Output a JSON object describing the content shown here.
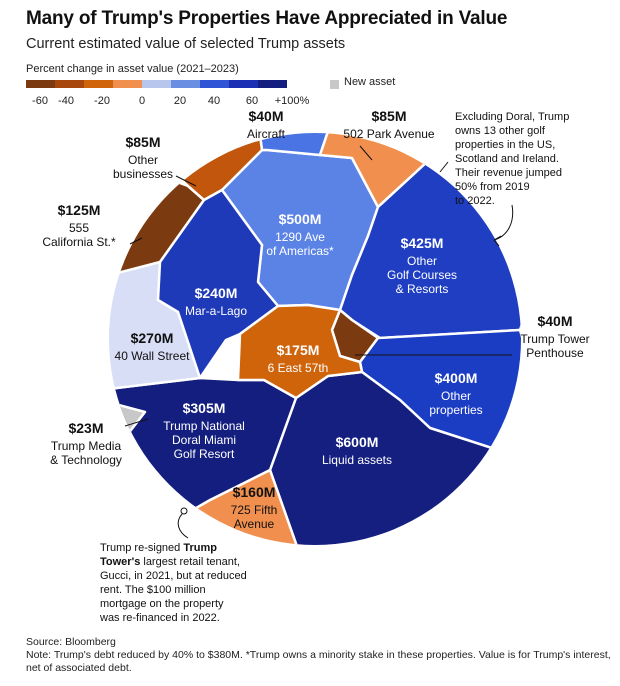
{
  "title": "Many of Trump's Properties Have Appreciated in Value",
  "subtitle": "Current estimated value of selected Trump assets",
  "legend": {
    "title": "Percent change in asset value (2021–2023)",
    "colors": [
      "#7b3a10",
      "#a8470d",
      "#d0640b",
      "#f1904e",
      "#b8c6ee",
      "#6a8fe2",
      "#2f54d6",
      "#1b2fb4",
      "#131e7e"
    ],
    "ticks": [
      "-60",
      "-40",
      "-20",
      "0",
      "20",
      "40",
      "60",
      "+100%"
    ],
    "new_asset_label": "New asset",
    "new_asset_color": "#c8c8c8"
  },
  "chart_data": {
    "type": "voronoi-treemap",
    "unit": "USD",
    "assets": [
      {
        "value": "$500M",
        "name": "1290 Ave of Americas*",
        "color": "#5b83e6"
      },
      {
        "value": "$40M",
        "name": "Aircraft",
        "color": "#4a74e4"
      },
      {
        "value": "$85M",
        "name": "502 Park Avenue",
        "color": "#f1904e"
      },
      {
        "value": "$425M",
        "name": "Other Golf Courses & Resorts",
        "color": "#1f3ec2"
      },
      {
        "value": "$40M",
        "name": "Trump Tower Penthouse",
        "color": "#7b3a10"
      },
      {
        "value": "$400M",
        "name": "Other properties",
        "color": "#1b3dc4"
      },
      {
        "value": "$600M",
        "name": "Liquid assets",
        "color": "#141f80"
      },
      {
        "value": "$160M",
        "name": "725 Fifth Avenue",
        "color": "#f1904e"
      },
      {
        "value": "$305M",
        "name": "Trump National Doral Miami Golf Resort",
        "color": "#131e7e"
      },
      {
        "value": "$23M",
        "name": "Trump Media & Technology",
        "color": "#c8c8c8"
      },
      {
        "value": "$270M",
        "name": "40 Wall Street",
        "color": "#d7def5"
      },
      {
        "value": "$125M",
        "name": "555 California St.*",
        "color": "#7b3a10"
      },
      {
        "value": "$85M",
        "name": "Other businesses",
        "color": "#c2560c"
      },
      {
        "value": "$240M",
        "name": "Mar-a-Lago",
        "color": "#1e3ab8"
      },
      {
        "value": "$175M",
        "name": "6 East 57th",
        "color": "#d0640b"
      }
    ]
  },
  "labels": {
    "ave": {
      "value": "$500M",
      "l1": "1290 Ave",
      "l2": "of Americas*"
    },
    "aircraft": {
      "value": "$40M",
      "l1": "Aircraft"
    },
    "park": {
      "value": "$85M",
      "l1": "502 Park Avenue"
    },
    "golf": {
      "value": "$425M",
      "l1": "Other",
      "l2": "Golf Courses",
      "l3": "& Resorts"
    },
    "penthouse": {
      "value": "$40M",
      "l1": "Trump Tower",
      "l2": "Penthouse"
    },
    "otherprop": {
      "value": "$400M",
      "l1": "Other",
      "l2": "properties"
    },
    "liquid": {
      "value": "$600M",
      "l1": "Liquid assets"
    },
    "fifth": {
      "value": "$160M",
      "l1": "725 Fifth",
      "l2": "Avenue"
    },
    "doral": {
      "value": "$305M",
      "l1": "Trump National",
      "l2": "Doral Miami",
      "l3": "Golf Resort"
    },
    "media": {
      "value": "$23M",
      "l1": "Trump Media",
      "l2": "& Technology"
    },
    "wall": {
      "value": "$270M",
      "l1": "40 Wall Street"
    },
    "california": {
      "value": "$125M",
      "l1": "555",
      "l2": "California St.*"
    },
    "otherbiz": {
      "value": "$85M",
      "l1": "Other",
      "l2": "businesses"
    },
    "mar": {
      "value": "$240M",
      "l1": "Mar-a-Lago"
    },
    "east": {
      "value": "$175M",
      "l1": "6 East 57th"
    }
  },
  "annotations": {
    "golf_note": [
      "Excluding Doral, Trump",
      "owns 13 other golf",
      "properties in the US,",
      "Scotland and Ireland.",
      "Their revenue jumped",
      "50% from 2019",
      "to 2022."
    ],
    "tower_note": {
      "line1_pre": "Trump re-signed ",
      "line1_bold": "Trump",
      "line2_bold": "Tower's",
      "line2_post": " largest retail tenant,",
      "rest": [
        "Gucci, in 2021, but at reduced",
        "rent. The $100 million",
        "mortgage on the property",
        "was re-financed in 2022."
      ]
    }
  },
  "footer": {
    "source": "Source: Bloomberg",
    "note": "Note: Trump's debt reduced by 40% to $380M. *Trump owns a minority stake in these properties. Value is for Trump's interest, net of associated debt."
  }
}
